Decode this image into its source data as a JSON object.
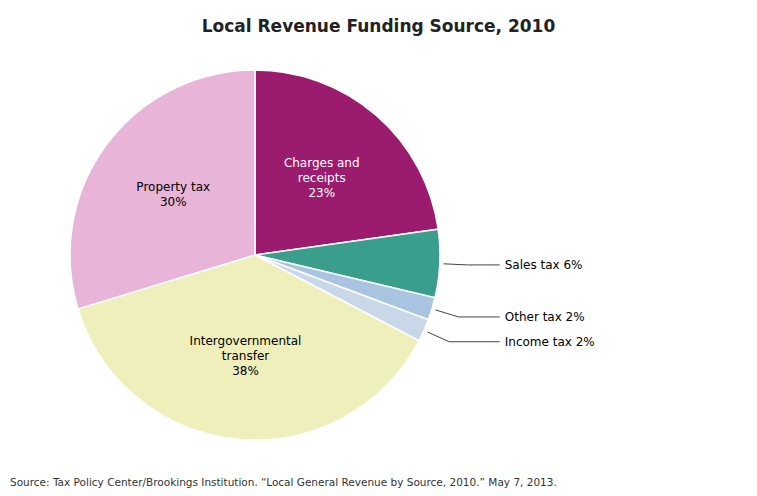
{
  "chart_data": {
    "type": "pie",
    "title": "Local Revenue Funding Source, 2010",
    "source": "Source: Tax Policy Center/Brookings Institution. “Local General Revenue by Source, 2010.” May 7, 2013.",
    "categories": [
      "Charges and\nreceipts\n23%",
      "Sales tax 6%",
      "Other tax 2%",
      "Income tax 2%",
      "Intergovernmental\ntransfer\n38%",
      "Property tax\n30%"
    ],
    "values": [
      23,
      6,
      2,
      2,
      38,
      30
    ],
    "colors": [
      "#9B1B6E",
      "#3A9E8C",
      "#A8C4E0",
      "#C8D8E8",
      "#EEEFBB",
      "#E8B4D8"
    ]
  }
}
